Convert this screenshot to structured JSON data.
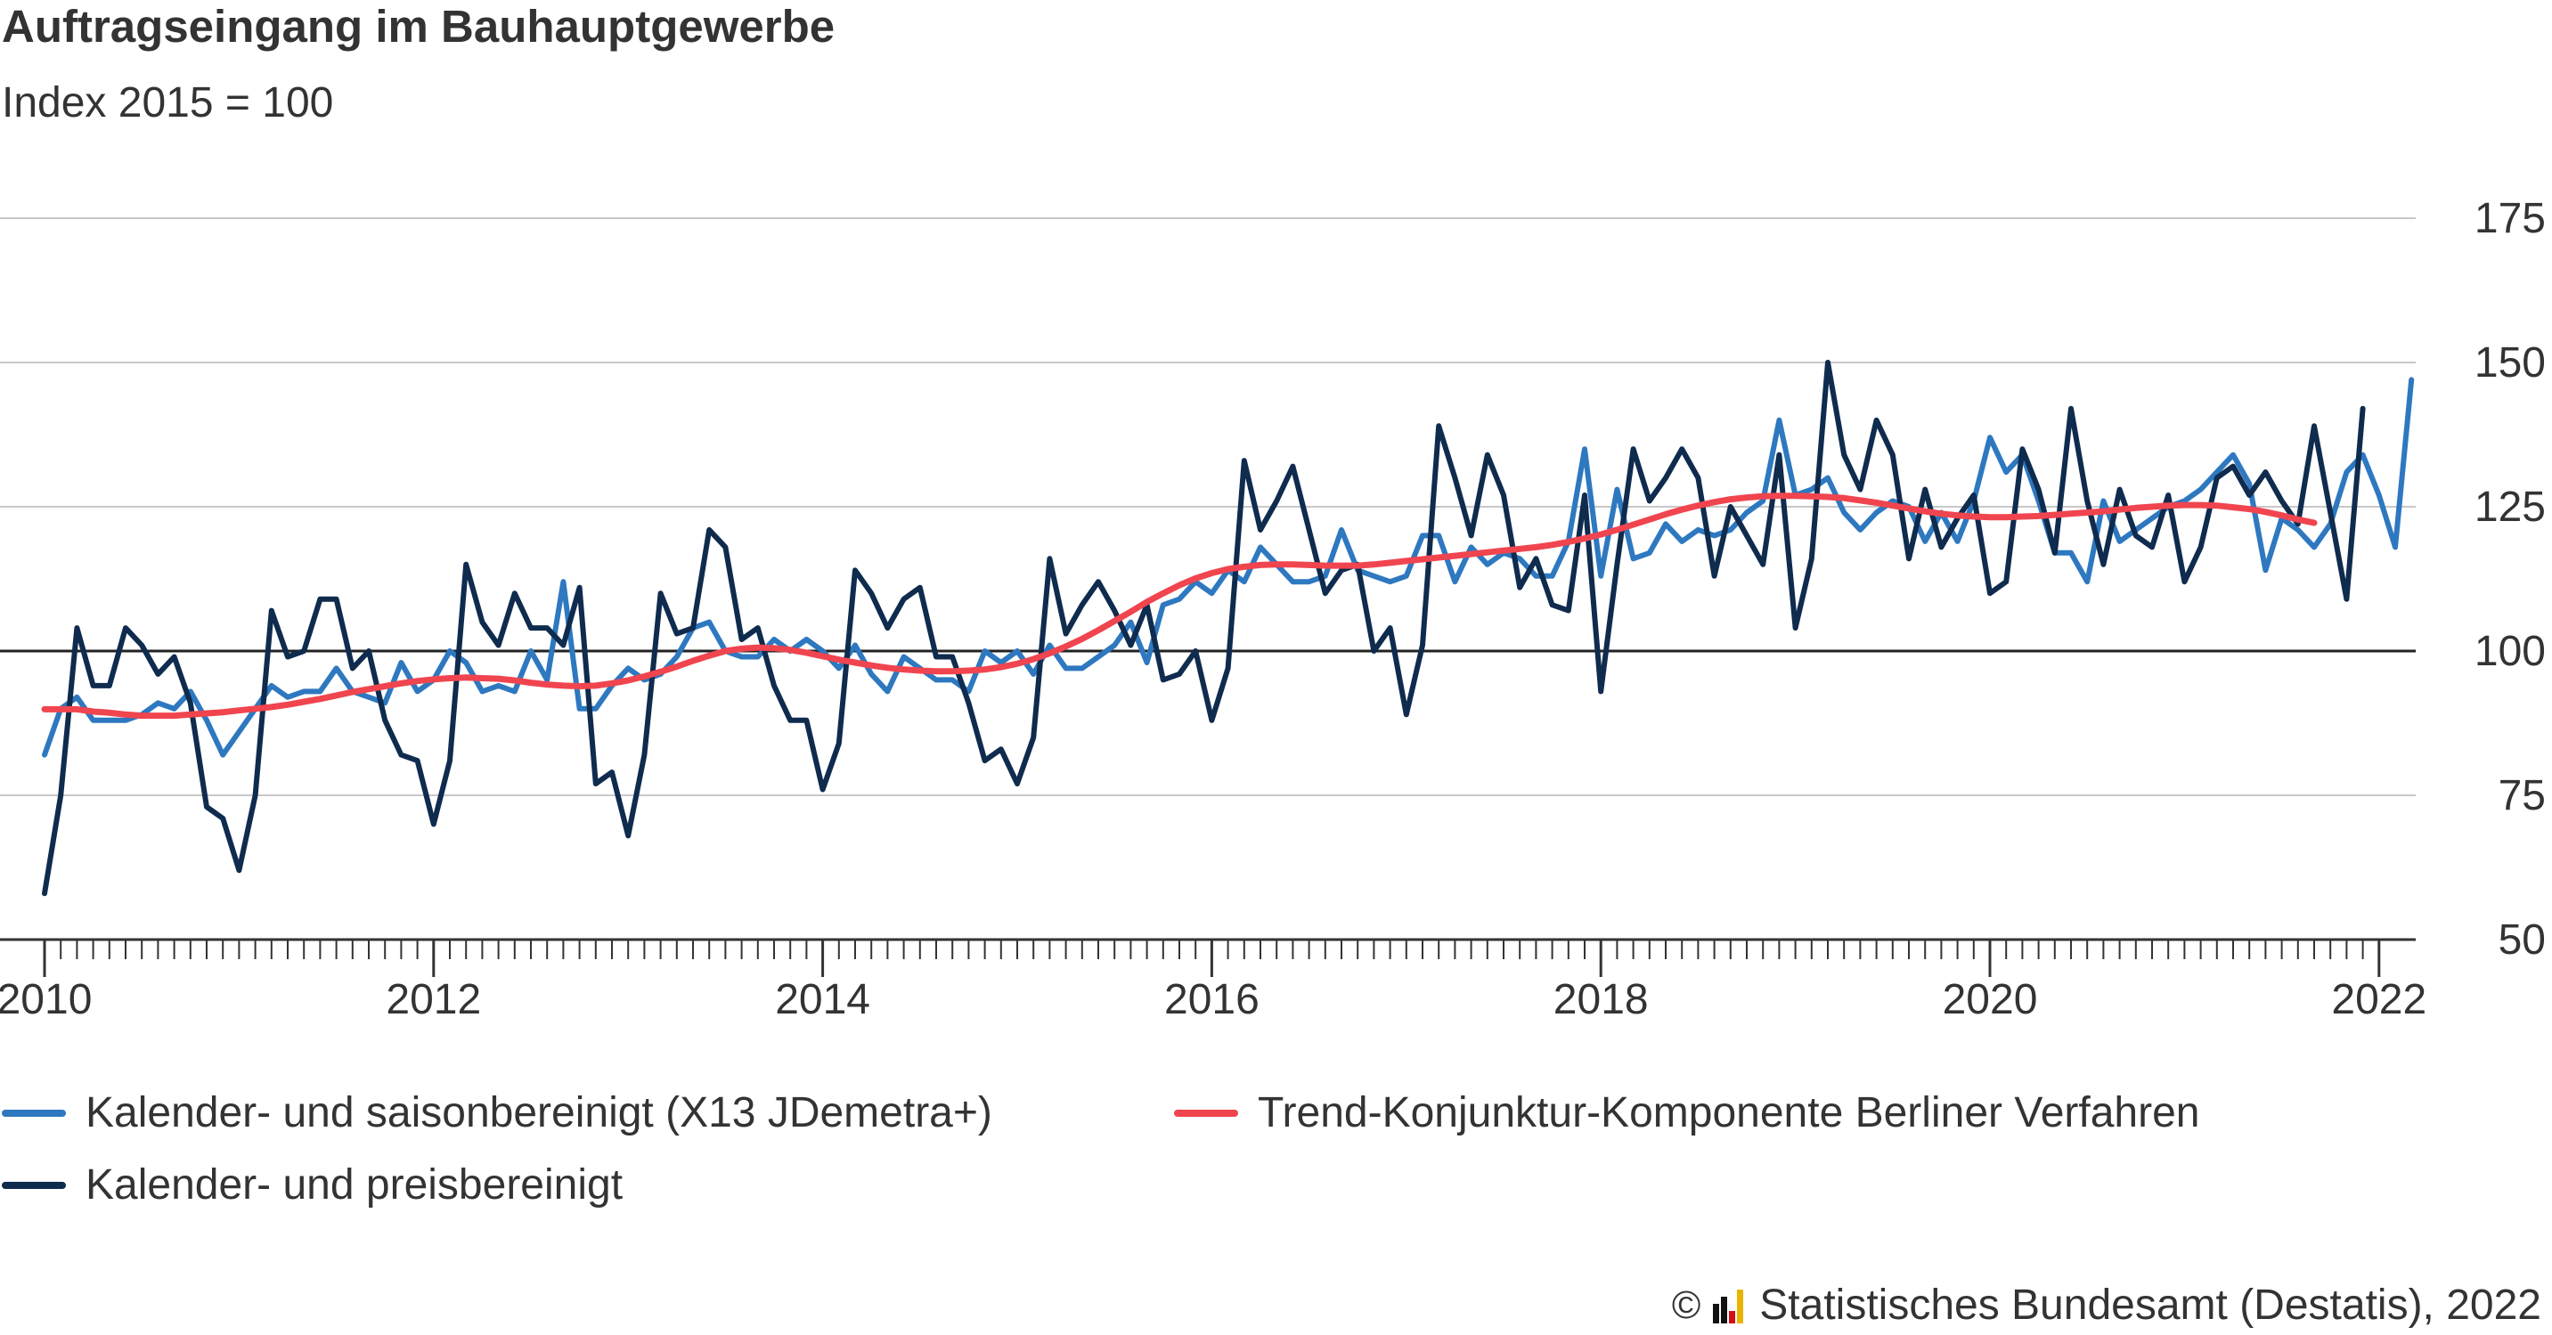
{
  "title": "Auftragseingang im Bauhauptgewerbe",
  "subtitle": "Index 2015 = 100",
  "credit": {
    "copyright_symbol": "©",
    "text": "Statistisches Bundesamt (Destatis), 2022"
  },
  "colors": {
    "series_saison": "#2e78c0",
    "series_preis": "#0f2b4e",
    "series_trend": "#f0454f",
    "grid": "#c8c8c8",
    "baseline": "#222222",
    "axis": "#333333",
    "logo_black": "#111111",
    "logo_red": "#d0101a",
    "logo_gold": "#e8b400"
  },
  "chart_data": {
    "type": "line",
    "x_unit": "month",
    "x_start": "2010-01",
    "y_range": [
      50,
      175
    ],
    "y_ticks": [
      50,
      75,
      100,
      125,
      150,
      175
    ],
    "x_tick_labels": [
      "2010",
      "2012",
      "2014",
      "2016",
      "2018",
      "2020",
      "2022"
    ],
    "reference_line": 100,
    "grid": true,
    "legend_position": "bottom",
    "series": [
      {
        "name": "Kalender- und saisonbereinigt (X13 JDemetra+)",
        "color_key": "series_saison",
        "values": [
          82,
          90,
          92,
          88,
          88,
          88,
          89,
          91,
          90,
          93,
          88,
          82,
          86,
          90,
          94,
          92,
          93,
          93,
          97,
          93,
          92,
          91,
          98,
          93,
          95,
          100,
          98,
          93,
          94,
          93,
          100,
          95,
          112,
          90,
          90,
          94,
          97,
          95,
          96,
          99,
          104,
          105,
          100,
          99,
          99,
          102,
          100,
          102,
          100,
          97,
          101,
          96,
          93,
          99,
          97,
          95,
          95,
          93,
          100,
          98,
          100,
          96,
          101,
          97,
          97,
          99,
          101,
          105,
          98,
          108,
          109,
          112,
          110,
          114,
          112,
          118,
          115,
          112,
          112,
          113,
          121,
          114,
          113,
          112,
          113,
          120,
          120,
          112,
          118,
          115,
          117,
          116,
          113,
          113,
          119,
          135,
          113,
          128,
          116,
          117,
          122,
          119,
          121,
          120,
          121,
          124,
          126,
          140,
          127,
          128,
          130,
          124,
          121,
          124,
          126,
          125,
          119,
          124,
          119,
          126,
          137,
          131,
          134,
          126,
          117,
          117,
          112,
          126,
          119,
          121,
          123,
          125,
          126,
          128,
          131,
          134,
          129,
          114,
          123,
          121,
          118,
          122,
          131,
          134,
          127,
          118,
          147
        ]
      },
      {
        "name": "Kalender- und preisbereinigt",
        "color_key": "series_preis",
        "values": [
          58,
          75,
          104,
          94,
          94,
          104,
          101,
          96,
          99,
          91,
          73,
          71,
          62,
          75,
          107,
          99,
          100,
          109,
          109,
          97,
          100,
          88,
          82,
          81,
          70,
          81,
          115,
          105,
          101,
          110,
          104,
          104,
          101,
          111,
          77,
          79,
          68,
          82,
          110,
          103,
          104,
          121,
          118,
          102,
          104,
          94,
          88,
          88,
          76,
          84,
          114,
          110,
          104,
          109,
          111,
          99,
          99,
          91,
          81,
          83,
          77,
          85,
          116,
          103,
          108,
          112,
          107,
          101,
          108,
          95,
          96,
          100,
          88,
          97,
          133,
          121,
          126,
          132,
          121,
          110,
          114,
          115,
          100,
          104,
          89,
          101,
          139,
          130,
          120,
          134,
          127,
          111,
          116,
          108,
          107,
          127,
          93,
          115,
          135,
          126,
          130,
          135,
          130,
          113,
          125,
          120,
          115,
          134,
          104,
          116,
          150,
          134,
          128,
          140,
          134,
          116,
          128,
          118,
          123,
          127,
          110,
          112,
          135,
          128,
          117,
          142,
          126,
          115,
          128,
          120,
          118,
          127,
          112,
          118,
          130,
          132,
          127,
          131,
          126,
          122,
          139,
          124,
          109,
          142
        ]
      },
      {
        "name": "Trend-Konjunktur-Komponente Berliner Verfahren",
        "color_key": "series_trend",
        "values": [
          89.9,
          89.9,
          89.9,
          89.5,
          89.3,
          89.0,
          88.8,
          88.8,
          88.8,
          89.0,
          89.2,
          89.4,
          89.7,
          90.0,
          90.3,
          90.7,
          91.2,
          91.7,
          92.3,
          92.9,
          93.4,
          93.9,
          94.4,
          94.8,
          95.1,
          95.3,
          95.4,
          95.3,
          95.2,
          94.9,
          94.5,
          94.2,
          94.0,
          93.9,
          94.0,
          94.4,
          94.9,
          95.6,
          96.4,
          97.3,
          98.3,
          99.2,
          100.0,
          100.4,
          100.6,
          100.5,
          100.2,
          99.7,
          99.1,
          98.5,
          98.0,
          97.5,
          97.1,
          96.8,
          96.6,
          96.5,
          96.5,
          96.6,
          96.8,
          97.2,
          97.8,
          98.6,
          99.6,
          100.8,
          102.1,
          103.6,
          105.2,
          106.8,
          108.5,
          110.0,
          111.4,
          112.6,
          113.5,
          114.2,
          114.6,
          114.9,
          115.0,
          115.0,
          114.9,
          114.8,
          114.8,
          114.8,
          115.0,
          115.3,
          115.6,
          115.9,
          116.2,
          116.5,
          116.8,
          117.1,
          117.4,
          117.7,
          118.0,
          118.4,
          118.9,
          119.5,
          120.2,
          121.0,
          121.9,
          122.8,
          123.7,
          124.5,
          125.2,
          125.8,
          126.3,
          126.6,
          126.8,
          126.9,
          126.9,
          126.8,
          126.7,
          126.5,
          126.1,
          125.7,
          125.2,
          124.7,
          124.2,
          123.8,
          123.5,
          123.3,
          123.2,
          123.2,
          123.3,
          123.4,
          123.6,
          123.8,
          124.0,
          124.2,
          124.5,
          124.8,
          125.0,
          125.2,
          125.3,
          125.3,
          125.2,
          124.9,
          124.6,
          124.1,
          123.5,
          122.8,
          122.2
        ]
      }
    ]
  }
}
